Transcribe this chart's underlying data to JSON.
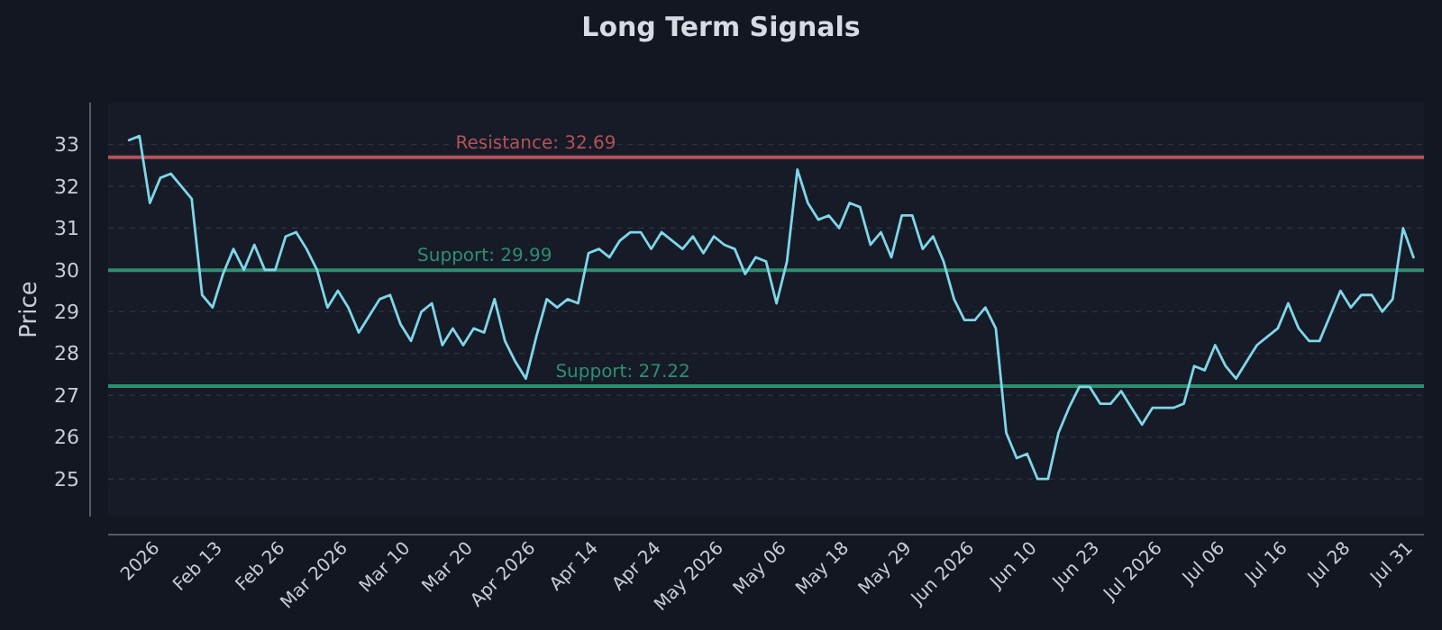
{
  "chart_data": {
    "type": "line",
    "title": "Long Term Signals",
    "ylabel": "Price",
    "categories": [
      null,
      null,
      null,
      "2026",
      null,
      null,
      null,
      null,
      null,
      "Feb 13",
      null,
      null,
      null,
      null,
      null,
      "Feb 26",
      null,
      null,
      null,
      null,
      null,
      "Mar 2026",
      null,
      null,
      null,
      null,
      null,
      "Mar 10",
      null,
      null,
      null,
      null,
      null,
      "Mar 20",
      null,
      null,
      null,
      null,
      null,
      "Apr 2026",
      null,
      null,
      null,
      null,
      null,
      "Apr 14",
      null,
      null,
      null,
      null,
      null,
      "Apr 24",
      null,
      null,
      null,
      null,
      null,
      "May 2026",
      null,
      null,
      null,
      null,
      null,
      "May 06",
      null,
      null,
      null,
      null,
      null,
      "May 18",
      null,
      null,
      null,
      null,
      null,
      "May 29",
      null,
      null,
      null,
      null,
      null,
      "Jun 2026",
      null,
      null,
      null,
      null,
      null,
      "Jun 10",
      null,
      null,
      null,
      null,
      null,
      "Jun 23",
      null,
      null,
      null,
      null,
      null,
      "Jul 2026",
      null,
      null,
      null,
      null,
      null,
      "Jul 06",
      null,
      null,
      null,
      null,
      null,
      "Jul 16",
      null,
      null,
      null,
      null,
      null,
      "Jul 28",
      null,
      null,
      null,
      null,
      null,
      "Jul 31"
    ],
    "series": [
      {
        "color": "#7fd6e8",
        "values": [
          33.1,
          33.2,
          31.6,
          32.2,
          32.3,
          32.0,
          31.7,
          29.4,
          29.1,
          29.9,
          30.5,
          30.0,
          30.6,
          30.0,
          30.0,
          30.8,
          30.9,
          30.5,
          30.0,
          29.1,
          29.5,
          29.1,
          28.5,
          28.9,
          29.3,
          29.4,
          28.7,
          28.3,
          29.0,
          29.2,
          28.2,
          28.6,
          28.2,
          28.6,
          28.5,
          29.3,
          28.3,
          27.8,
          27.4,
          28.4,
          29.3,
          29.1,
          29.3,
          29.2,
          30.4,
          30.5,
          30.3,
          30.7,
          30.9,
          30.9,
          30.5,
          30.9,
          30.7,
          30.5,
          30.8,
          30.4,
          30.8,
          30.6,
          30.5,
          29.9,
          30.3,
          30.2,
          29.2,
          30.2,
          32.4,
          31.6,
          31.2,
          31.3,
          31.0,
          31.6,
          31.5,
          30.6,
          30.9,
          30.3,
          31.3,
          31.3,
          30.5,
          30.8,
          30.2,
          29.3,
          28.8,
          28.8,
          29.1,
          28.6,
          26.1,
          25.5,
          25.6,
          25.0,
          25.0,
          26.1,
          26.7,
          27.2,
          27.2,
          26.8,
          26.8,
          27.1,
          26.7,
          26.3,
          26.7,
          26.7,
          26.7,
          26.8,
          27.7,
          27.6,
          28.2,
          27.7,
          27.4,
          27.8,
          28.2,
          28.4,
          28.6,
          29.2,
          28.6,
          28.3,
          28.3,
          28.9,
          29.5,
          29.1,
          29.4,
          29.4,
          29.0,
          29.3,
          31.0,
          30.3
        ]
      }
    ],
    "ylim": [
      24.1,
      34
    ],
    "yticks": [
      25,
      26,
      27,
      28,
      29,
      30,
      31,
      32,
      33
    ],
    "grid": "y",
    "ref_lines": [
      {
        "axis": "y",
        "value": 32.69,
        "label": "Resistance: 32.69",
        "color": "#b5525a"
      },
      {
        "axis": "y",
        "value": 29.99,
        "label": "Support: 29.99",
        "color": "#2e8f70"
      },
      {
        "axis": "y",
        "value": 27.22,
        "label": "Support: 27.22",
        "color": "#2e8f70"
      }
    ]
  }
}
